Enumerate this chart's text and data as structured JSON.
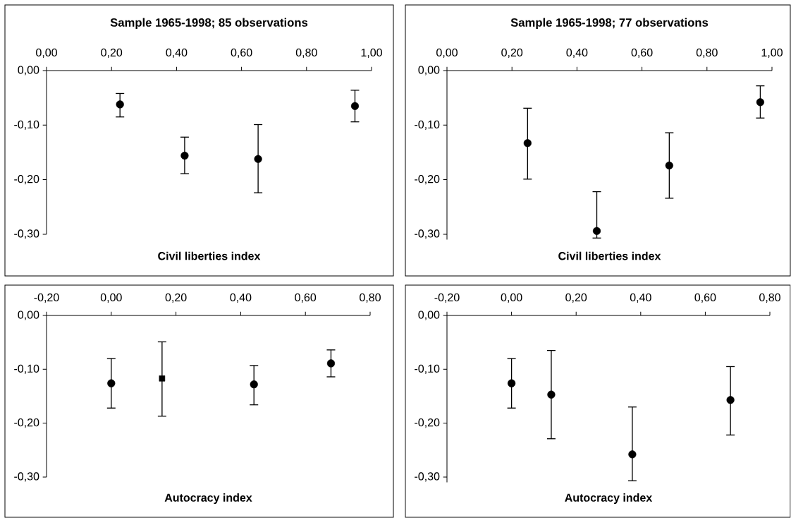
{
  "chart_data": [
    {
      "type": "scatter",
      "title": "Sample 1965-1998; 85 observations",
      "xlabel": "Civil liberties index",
      "xlim": [
        0,
        1
      ],
      "ylim": [
        -0.3,
        0
      ],
      "xticks": [
        {
          "value": 0,
          "label": "0,00"
        },
        {
          "value": 0.2,
          "label": "0,20"
        },
        {
          "value": 0.4,
          "label": "0,40"
        },
        {
          "value": 0.6,
          "label": "0,60"
        },
        {
          "value": 0.8,
          "label": "0,80"
        },
        {
          "value": 1,
          "label": "1,00"
        }
      ],
      "yticks": [
        {
          "value": 0,
          "label": "0,00"
        },
        {
          "value": -0.1,
          "label": "-0,10"
        },
        {
          "value": -0.2,
          "label": "-0,20"
        },
        {
          "value": -0.3,
          "label": "-0,30"
        }
      ],
      "series": [
        {
          "color": "#000000",
          "marker": "circle",
          "x": [
            0.226,
            0.425,
            0.651,
            0.949
          ],
          "values": [
            -0.062,
            -0.156,
            -0.162,
            -0.065
          ],
          "errors": [
            [
              -0.085,
              -0.042
            ],
            [
              -0.189,
              -0.122
            ],
            [
              -0.224,
              -0.099
            ],
            [
              -0.094,
              -0.036
            ]
          ]
        }
      ]
    },
    {
      "type": "scatter",
      "title": "Sample 1965-1998; 77 observations",
      "xlabel": "Civil liberties index",
      "xlim": [
        0,
        1
      ],
      "ylim": [
        -0.31,
        0
      ],
      "xticks": [
        {
          "value": 0,
          "label": "0,00"
        },
        {
          "value": 0.2,
          "label": "0,20"
        },
        {
          "value": 0.4,
          "label": "0,40"
        },
        {
          "value": 0.6,
          "label": "0,60"
        },
        {
          "value": 0.8,
          "label": "0,80"
        },
        {
          "value": 1,
          "label": "1,00"
        }
      ],
      "yticks": [
        {
          "value": 0,
          "label": "0,00"
        },
        {
          "value": -0.1,
          "label": "-0,10"
        },
        {
          "value": -0.2,
          "label": "-0,20"
        },
        {
          "value": -0.3,
          "label": "-0,30"
        }
      ],
      "series": [
        {
          "color": "#000000",
          "marker": "circle",
          "x": [
            0.248,
            0.461,
            0.684,
            0.964
          ],
          "values": [
            -0.133,
            -0.294,
            -0.174,
            -0.058
          ],
          "errors": [
            [
              -0.199,
              -0.069
            ],
            [
              -0.307,
              -0.222
            ],
            [
              -0.234,
              -0.114
            ],
            [
              -0.087,
              -0.028
            ]
          ]
        }
      ]
    },
    {
      "type": "scatter",
      "xlabel": "Autocracy index",
      "xlim": [
        -0.2,
        0.8
      ],
      "ylim": [
        -0.3,
        0
      ],
      "xticks": [
        {
          "value": -0.2,
          "label": "-0,20"
        },
        {
          "value": 0,
          "label": "0,00"
        },
        {
          "value": 0.2,
          "label": "0,20"
        },
        {
          "value": 0.4,
          "label": "0,40"
        },
        {
          "value": 0.6,
          "label": "0,60"
        },
        {
          "value": 0.8,
          "label": "0,80"
        }
      ],
      "yticks": [
        {
          "value": 0,
          "label": "0,00"
        },
        {
          "value": -0.1,
          "label": "-0,10"
        },
        {
          "value": -0.2,
          "label": "-0,20"
        },
        {
          "value": -0.3,
          "label": "-0,30"
        }
      ],
      "series": [
        {
          "color": "#000000",
          "marker": "circle",
          "x": [
            0.0,
            0.441,
            0.679
          ],
          "values": [
            -0.126,
            -0.128,
            -0.089
          ],
          "errors": [
            [
              -0.172,
              -0.08
            ],
            [
              -0.166,
              -0.093
            ],
            [
              -0.114,
              -0.064
            ]
          ]
        },
        {
          "color": "#000000",
          "marker": "square",
          "x": [
            0.157
          ],
          "values": [
            -0.117
          ],
          "errors": [
            [
              -0.187,
              -0.049
            ]
          ]
        }
      ]
    },
    {
      "type": "scatter",
      "xlabel": "Autocracy index",
      "xlim": [
        -0.2,
        0.8
      ],
      "ylim": [
        -0.31,
        0
      ],
      "xticks": [
        {
          "value": -0.2,
          "label": "-0,20"
        },
        {
          "value": 0,
          "label": "0,00"
        },
        {
          "value": 0.2,
          "label": "0,20"
        },
        {
          "value": 0.4,
          "label": "0,40"
        },
        {
          "value": 0.6,
          "label": "0,60"
        },
        {
          "value": 0.8,
          "label": "0,80"
        }
      ],
      "yticks": [
        {
          "value": 0,
          "label": "0,00"
        },
        {
          "value": -0.1,
          "label": "-0,10"
        },
        {
          "value": -0.2,
          "label": "-0,20"
        },
        {
          "value": -0.3,
          "label": "-0,30"
        }
      ],
      "series": [
        {
          "color": "#000000",
          "marker": "circle",
          "x": [
            0.0,
            0.123,
            0.374,
            0.678
          ],
          "values": [
            -0.126,
            -0.147,
            -0.258,
            -0.157
          ],
          "errors": [
            [
              -0.172,
              -0.08
            ],
            [
              -0.229,
              -0.065
            ],
            [
              -0.307,
              -0.17
            ],
            [
              -0.222,
              -0.095
            ]
          ]
        }
      ]
    }
  ]
}
